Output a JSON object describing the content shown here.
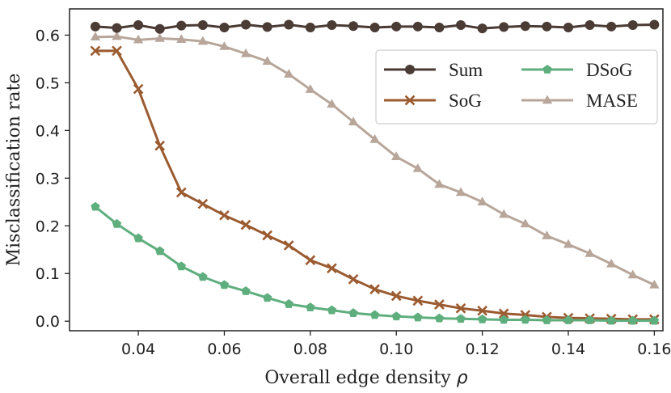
{
  "chart_data": {
    "type": "line",
    "title": "",
    "xlabel": "Overall edge density",
    "xlabel_symbol": "ρ",
    "ylabel": "Misclassification rate",
    "xlim": [
      0.024,
      0.162
    ],
    "ylim": [
      -0.02,
      0.655
    ],
    "xticks": [
      0.04,
      0.06,
      0.08,
      0.1,
      0.12,
      0.14,
      0.16
    ],
    "xtick_labels": [
      "0.04",
      "0.06",
      "0.08",
      "0.10",
      "0.12",
      "0.14",
      "0.16"
    ],
    "yticks": [
      0.0,
      0.1,
      0.2,
      0.3,
      0.4,
      0.5,
      0.6
    ],
    "ytick_labels": [
      "0.0",
      "0.1",
      "0.2",
      "0.3",
      "0.4",
      "0.5",
      "0.6"
    ],
    "grid": false,
    "legend_position": "top-right",
    "x": [
      0.03,
      0.035,
      0.04,
      0.045,
      0.05,
      0.055,
      0.06,
      0.065,
      0.07,
      0.075,
      0.08,
      0.085,
      0.09,
      0.095,
      0.1,
      0.105,
      0.11,
      0.115,
      0.12,
      0.125,
      0.13,
      0.135,
      0.14,
      0.145,
      0.15,
      0.155,
      0.16
    ],
    "series": [
      {
        "name": "Sum",
        "color": "#4a3b34",
        "marker": "circle",
        "values": [
          0.618,
          0.615,
          0.621,
          0.613,
          0.62,
          0.621,
          0.616,
          0.622,
          0.617,
          0.622,
          0.616,
          0.621,
          0.619,
          0.616,
          0.618,
          0.618,
          0.616,
          0.621,
          0.614,
          0.617,
          0.619,
          0.618,
          0.616,
          0.621,
          0.618,
          0.621,
          0.622
        ]
      },
      {
        "name": "SoG",
        "color": "#9b5b30",
        "marker": "x",
        "values": [
          0.567,
          0.567,
          0.487,
          0.368,
          0.27,
          0.246,
          0.222,
          0.202,
          0.18,
          0.159,
          0.128,
          0.111,
          0.088,
          0.067,
          0.053,
          0.043,
          0.035,
          0.027,
          0.022,
          0.016,
          0.013,
          0.009,
          0.007,
          0.006,
          0.005,
          0.004,
          0.004
        ]
      },
      {
        "name": "DSoG",
        "color": "#5fae7e",
        "marker": "pentagon",
        "values": [
          0.24,
          0.204,
          0.174,
          0.147,
          0.115,
          0.093,
          0.076,
          0.063,
          0.049,
          0.036,
          0.029,
          0.023,
          0.017,
          0.013,
          0.01,
          0.008,
          0.006,
          0.005,
          0.004,
          0.003,
          0.003,
          0.002,
          0.002,
          0.002,
          0.001,
          0.001,
          0.001
        ]
      },
      {
        "name": "MASE",
        "color": "#b8a69a",
        "marker": "triangle",
        "values": [
          0.596,
          0.597,
          0.59,
          0.593,
          0.591,
          0.587,
          0.576,
          0.561,
          0.545,
          0.518,
          0.486,
          0.455,
          0.418,
          0.381,
          0.345,
          0.32,
          0.287,
          0.27,
          0.25,
          0.224,
          0.204,
          0.179,
          0.161,
          0.142,
          0.12,
          0.097,
          0.076
        ]
      }
    ]
  }
}
